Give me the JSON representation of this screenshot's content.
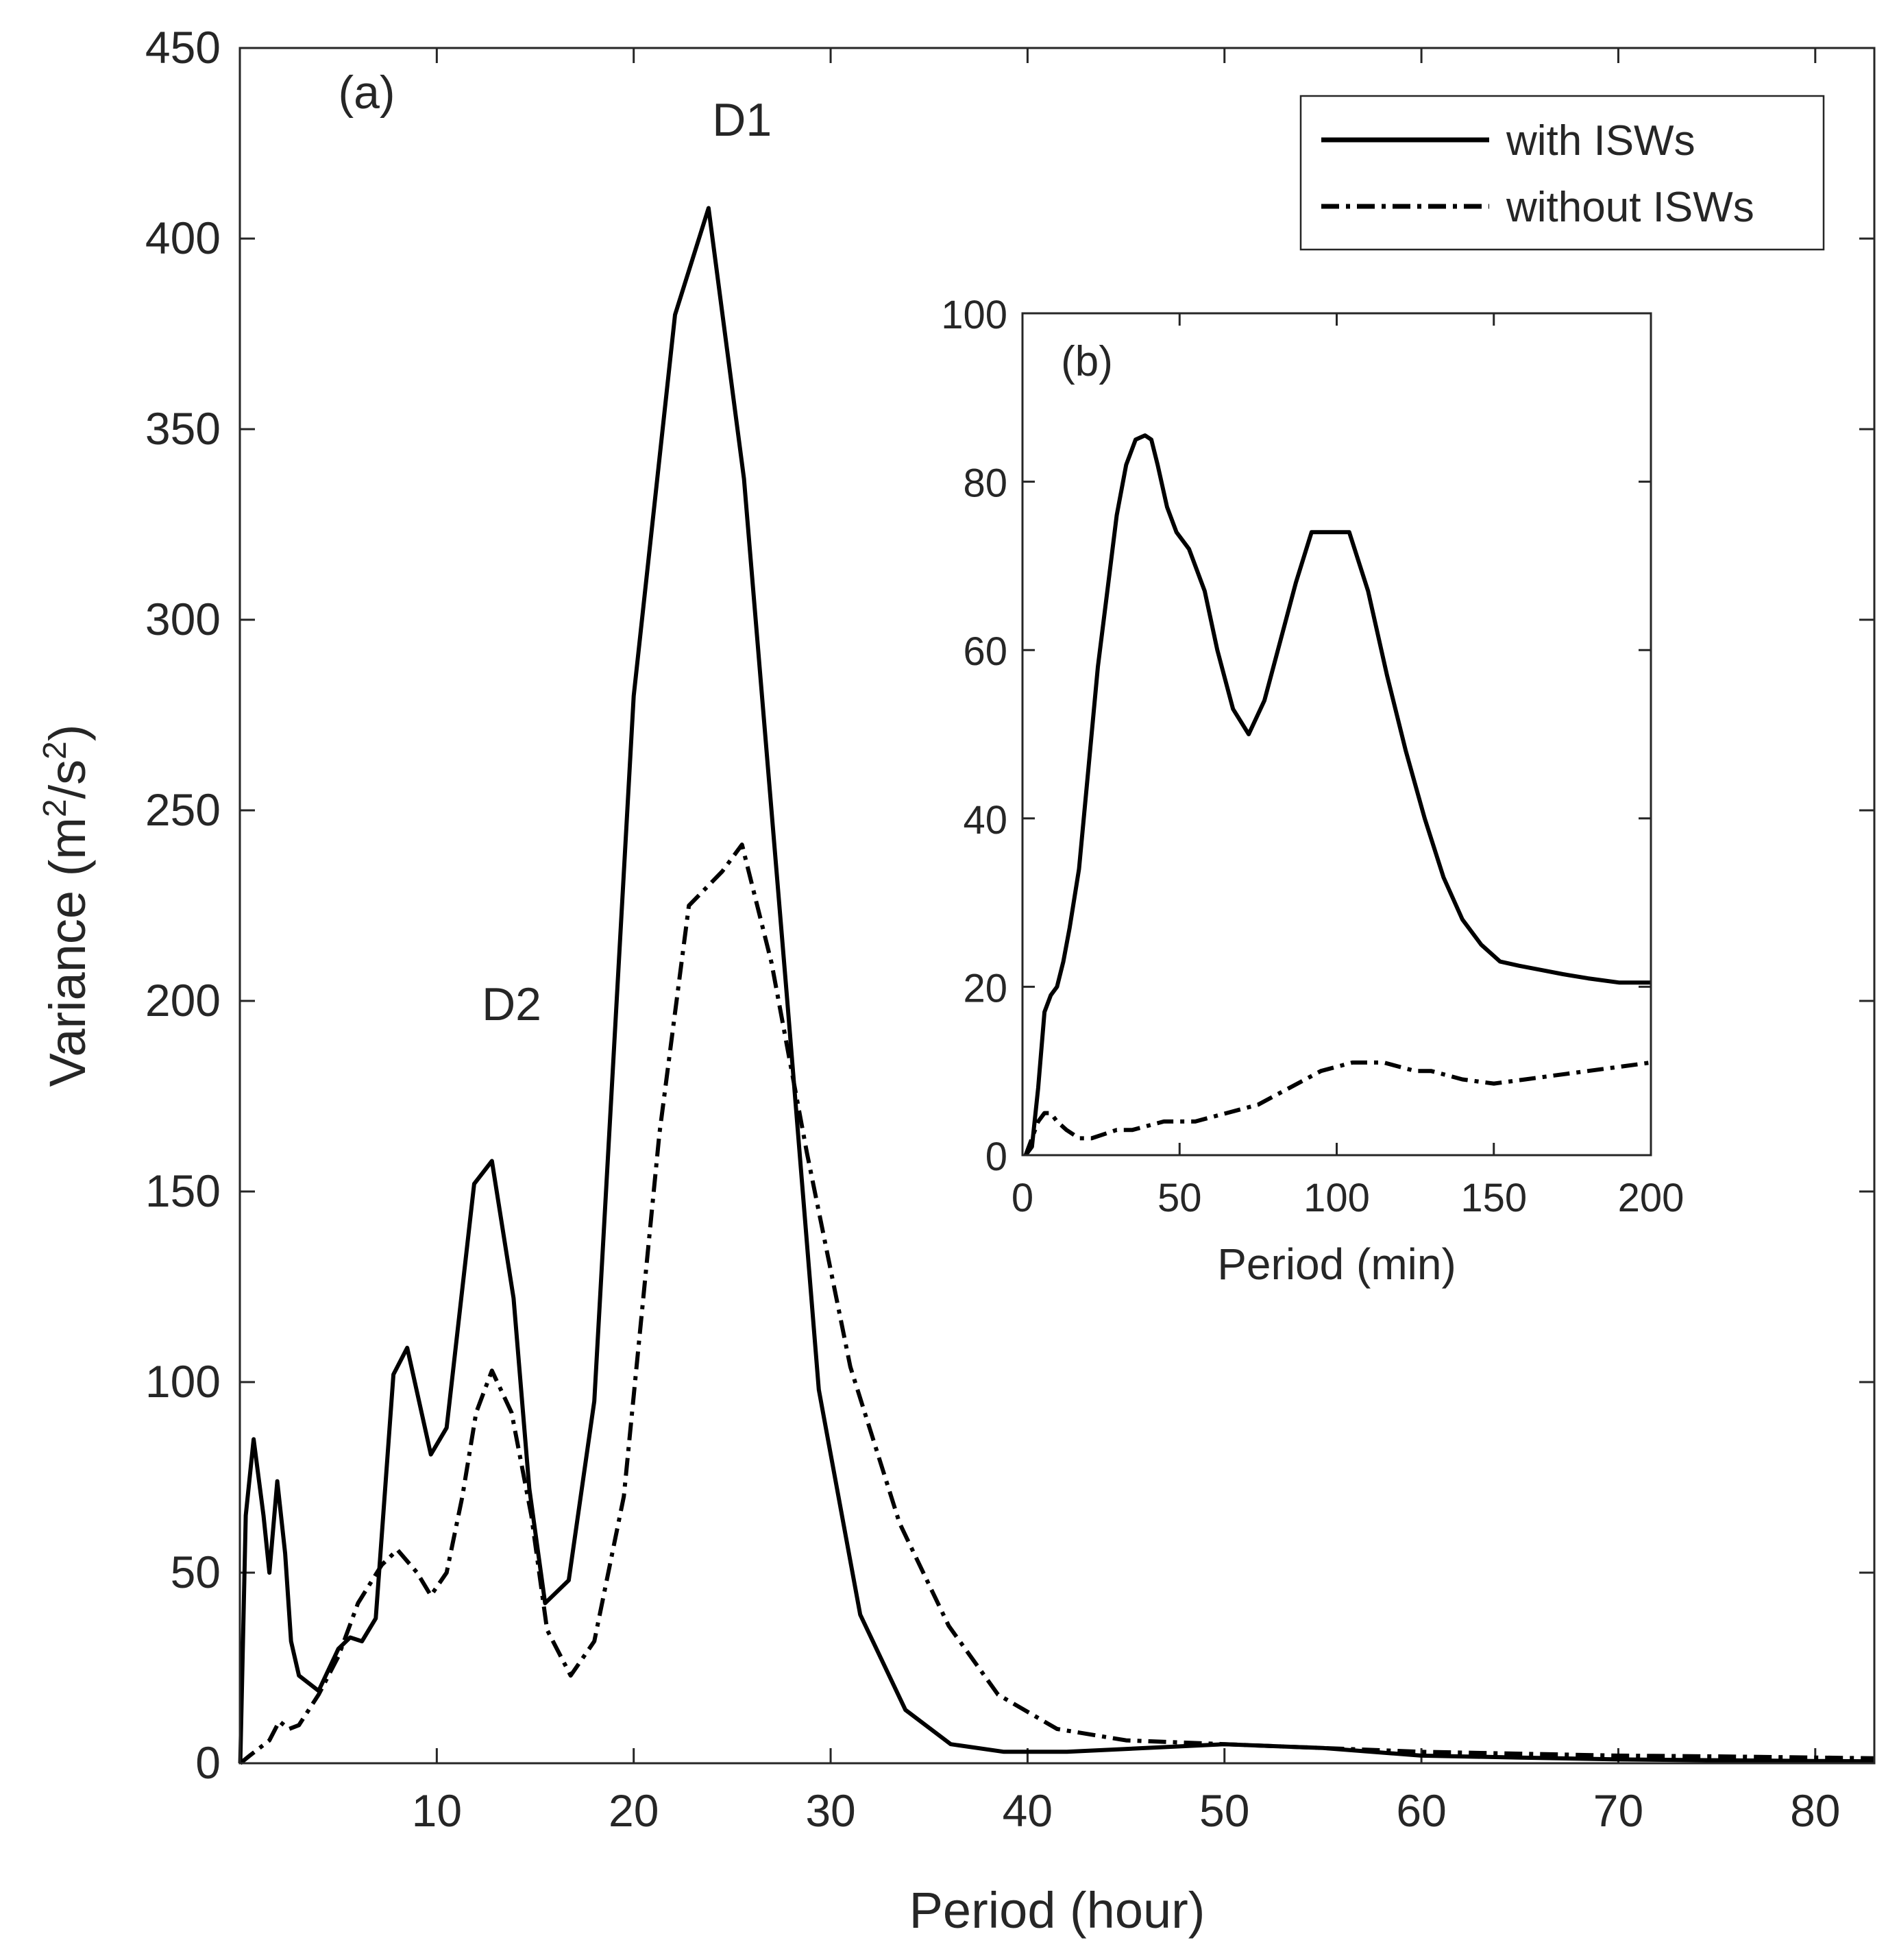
{
  "chart_data": [
    {
      "id": "main",
      "type": "line",
      "panel_label": "(a)",
      "xlabel": "Period (hour)",
      "ylabel_base": "Variance (m",
      "ylabel_sup1": "2",
      "ylabel_mid": "/s",
      "ylabel_sup2": "2",
      "ylabel_end": ")",
      "xlim": [
        0,
        83
      ],
      "ylim": [
        0,
        450
      ],
      "xticks": [
        "10",
        "20",
        "30",
        "40",
        "50",
        "60",
        "70",
        "80"
      ],
      "xtick_values": [
        10,
        20,
        30,
        40,
        50,
        60,
        70,
        80
      ],
      "yticks": [
        "0",
        "50",
        "100",
        "150",
        "200",
        "250",
        "300",
        "350",
        "400",
        "450"
      ],
      "ytick_values": [
        0,
        50,
        100,
        150,
        200,
        250,
        300,
        350,
        400,
        450
      ],
      "annotations": [
        {
          "text": "D1",
          "x": 25.5,
          "y": 427
        },
        {
          "text": "D2",
          "x": 13.8,
          "y": 195
        }
      ],
      "legend": {
        "position": "top-right",
        "entries": [
          {
            "label": "with ISWs",
            "style": "solid"
          },
          {
            "label": "without ISWs",
            "style": "dashdot"
          }
        ]
      },
      "series": [
        {
          "name": "with ISWs",
          "style": "solid",
          "x": [
            0.02,
            0.3,
            0.7,
            1.2,
            1.5,
            1.9,
            2.3,
            2.6,
            3.0,
            4.0,
            5.0,
            5.6,
            6.2,
            6.9,
            7.8,
            8.5,
            9.7,
            10.5,
            11.9,
            12.8,
            13.9,
            14.7,
            15.5,
            16.7,
            18.0,
            20.0,
            22.1,
            23.8,
            25.6,
            27.8,
            29.4,
            31.5,
            33.8,
            36.1,
            38.8,
            42.0,
            46.0,
            50.0,
            55.0,
            60.0,
            65.0,
            70.0,
            75.0,
            80.0,
            83.0
          ],
          "values": [
            0,
            65,
            85,
            65,
            50,
            74,
            55,
            32,
            23,
            19,
            30,
            33,
            32,
            38,
            102,
            109,
            81,
            88,
            152,
            158,
            122,
            72,
            42,
            48,
            95,
            280,
            380,
            408,
            337,
            200,
            98,
            39,
            14,
            5,
            3,
            3,
            4,
            5,
            4,
            2,
            1.5,
            1,
            0.8,
            0.6,
            0.5
          ]
        },
        {
          "name": "without ISWs",
          "style": "dashdot",
          "x": [
            0.02,
            0.5,
            1.0,
            1.5,
            2.0,
            2.5,
            3.0,
            4.0,
            5.0,
            6.0,
            7.2,
            8.0,
            9.0,
            9.7,
            10.5,
            11.3,
            12.0,
            12.8,
            13.8,
            14.8,
            15.6,
            16.8,
            18.0,
            19.5,
            21.3,
            22.8,
            24.5,
            25.5,
            27.0,
            28.8,
            31.0,
            33.5,
            36.0,
            38.5,
            41.5,
            45.0,
            50.0,
            55.0,
            60.0,
            65.0,
            70.0,
            75.0,
            80.0,
            83.0
          ],
          "values": [
            0,
            2,
            4,
            6,
            11,
            9,
            10,
            18,
            28,
            42,
            52,
            56,
            50,
            44,
            50,
            70,
            92,
            103,
            92,
            65,
            35,
            23,
            32,
            70,
            165,
            225,
            234,
            241,
            210,
            160,
            104,
            63,
            36,
            18,
            9,
            6,
            5,
            4,
            3,
            2.5,
            2,
            1.8,
            1.5,
            1.3
          ]
        }
      ]
    },
    {
      "id": "inset",
      "type": "line",
      "panel_label": "(b)",
      "xlabel": "Period (min)",
      "ylabel": "",
      "xlim": [
        0,
        200
      ],
      "ylim": [
        0,
        100
      ],
      "xticks": [
        "0",
        "50",
        "100",
        "150",
        "200"
      ],
      "xtick_values": [
        0,
        50,
        100,
        150,
        200
      ],
      "yticks": [
        "0",
        "20",
        "40",
        "60",
        "80",
        "100"
      ],
      "ytick_values": [
        0,
        20,
        40,
        60,
        80,
        100
      ],
      "series": [
        {
          "name": "with ISWs",
          "style": "solid",
          "x": [
            1,
            3,
            5,
            7,
            9,
            11,
            13,
            15,
            18,
            21,
            24,
            27,
            30,
            33,
            36,
            39,
            41,
            43,
            46,
            49,
            53,
            58,
            62,
            67,
            72,
            77,
            82,
            87,
            92,
            98,
            104,
            110,
            116,
            122,
            128,
            134,
            140,
            146,
            152,
            158,
            165,
            172,
            180,
            190,
            200
          ],
          "values": [
            0,
            1,
            8,
            17,
            19,
            20,
            23,
            27,
            34,
            46,
            58,
            67,
            76,
            82,
            85,
            85.5,
            85,
            82,
            77,
            74,
            72,
            67,
            60,
            53,
            50,
            54,
            61,
            68,
            74,
            74,
            74,
            67,
            57,
            48,
            40,
            33,
            28,
            25,
            23,
            22.5,
            22,
            21.5,
            21,
            20.5,
            20.5
          ]
        },
        {
          "name": "without ISWs",
          "style": "dashdot",
          "x": [
            1,
            3,
            5,
            7,
            9,
            11,
            14,
            18,
            22,
            26,
            30,
            35,
            40,
            45,
            50,
            55,
            60,
            65,
            70,
            75,
            80,
            85,
            90,
            95,
            100,
            105,
            110,
            115,
            120,
            125,
            130,
            135,
            140,
            150,
            160,
            170,
            180,
            190,
            200
          ],
          "values": [
            0,
            2,
            4,
            5,
            5,
            4,
            3,
            2,
            2,
            2.5,
            3,
            3,
            3.5,
            4,
            4,
            4,
            4.5,
            5,
            5.5,
            6,
            7,
            8,
            9,
            10,
            10.5,
            11,
            11,
            11,
            10.5,
            10,
            10,
            9.5,
            9,
            8.5,
            9,
            9.5,
            10,
            10.5,
            11
          ]
        }
      ]
    }
  ]
}
